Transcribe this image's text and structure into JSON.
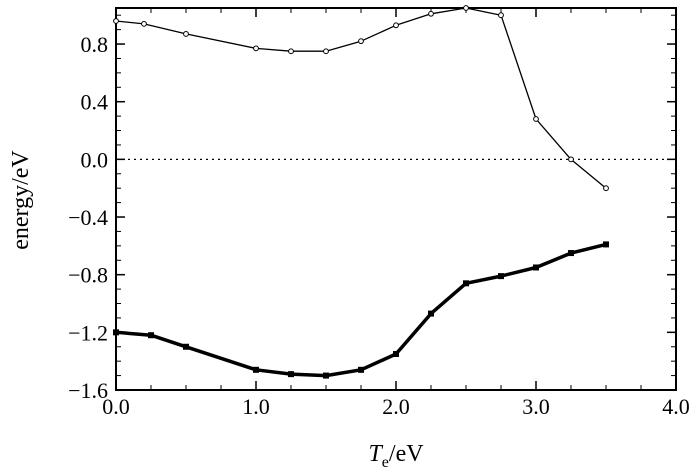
{
  "chart_data": {
    "type": "line",
    "xlabel": {
      "symbol": "T",
      "subscript": "e",
      "unit": "/eV"
    },
    "ylabel": "energy/eV",
    "xlim": [
      0.0,
      4.0
    ],
    "ylim": [
      -1.6,
      1.05
    ],
    "x_ticks": [
      "0.0",
      "1.0",
      "2.0",
      "3.0",
      "4.0"
    ],
    "y_ticks": [
      "0.8",
      "0.4",
      "0.0",
      "−0.4",
      "−0.8",
      "−1.2",
      "−1.6"
    ],
    "x_tick_values": [
      0,
      1,
      2,
      3,
      4
    ],
    "y_tick_values": [
      0.8,
      0.4,
      0.0,
      -0.4,
      -0.8,
      -1.2,
      -1.6
    ],
    "reference_line_y": 0.0,
    "grid": false,
    "legend": "none",
    "series": [
      {
        "style": "thin",
        "color": "#000000",
        "x": [
          0.0,
          0.2,
          0.5,
          1.0,
          1.25,
          1.5,
          1.75,
          2.0,
          2.25,
          2.5,
          2.75,
          3.0,
          3.25,
          3.5
        ],
        "y": [
          0.96,
          0.94,
          0.87,
          0.77,
          0.75,
          0.75,
          0.82,
          0.93,
          1.01,
          1.05,
          1.0,
          0.28,
          0.0,
          -0.2
        ]
      },
      {
        "style": "thick",
        "color": "#000000",
        "x": [
          0.0,
          0.25,
          0.5,
          1.0,
          1.25,
          1.5,
          1.75,
          2.0,
          2.25,
          2.5,
          2.75,
          3.0,
          3.25,
          3.5
        ],
        "y": [
          -1.2,
          -1.22,
          -1.3,
          -1.46,
          -1.49,
          -1.5,
          -1.46,
          -1.35,
          -1.07,
          -0.86,
          -0.81,
          -0.75,
          -0.65,
          -0.59
        ]
      }
    ]
  }
}
